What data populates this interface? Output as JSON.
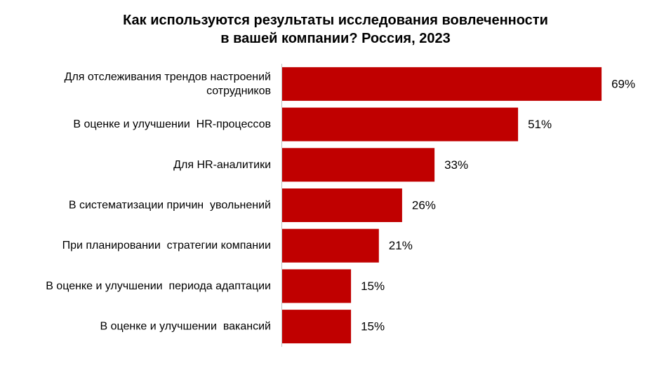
{
  "chart_data": {
    "type": "bar",
    "orientation": "horizontal",
    "title_lines": [
      "Как используются результаты исследования вовлеченности",
      "в вашей компании? Россия, 2023"
    ],
    "categories": [
      [
        "Для отслеживания трендов настроений",
        "сотрудников"
      ],
      [
        "В оценке и улучшении  HR-процессов"
      ],
      [
        "Для HR-аналитики"
      ],
      [
        "В систематизации причин  увольнений"
      ],
      [
        "При планировании  стратегии компании"
      ],
      [
        "В оценке и улучшении  периода адаптации"
      ],
      [
        "В оценке и улучшении  вакансий"
      ]
    ],
    "values": [
      69,
      51,
      33,
      26,
      21,
      15,
      15
    ],
    "value_labels": [
      "69%",
      "51%",
      "33%",
      "26%",
      "21%",
      "15%",
      "15%"
    ],
    "xlim": [
      0,
      100
    ],
    "grid": false,
    "legend": "none",
    "bar_color": "#C00000",
    "axis_color": "#BFBFBF"
  }
}
